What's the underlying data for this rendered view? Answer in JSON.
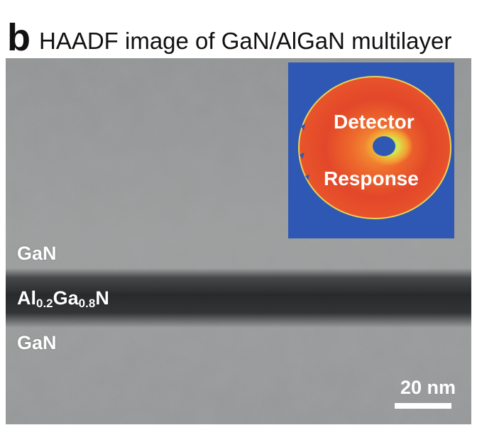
{
  "figure": {
    "panel_letter": "b",
    "title": "HAADF image of GaN/AlGaN multilayer"
  },
  "image": {
    "layer_labels": {
      "top": "GaN",
      "middle_main_1": "Al",
      "middle_sub_1": "0.2",
      "middle_main_2": "Ga",
      "middle_sub_2": "0.8",
      "middle_main_3": "N",
      "bottom": "GaN"
    },
    "inset": {
      "line1": "Detector",
      "line2": "Response"
    },
    "scale_bar": {
      "label": "20 nm"
    }
  },
  "colors": {
    "inset_background": "#2f58b5",
    "detector_red": "#e0442a",
    "detector_orange": "#f08a2f",
    "label_text": "#ffffff"
  }
}
